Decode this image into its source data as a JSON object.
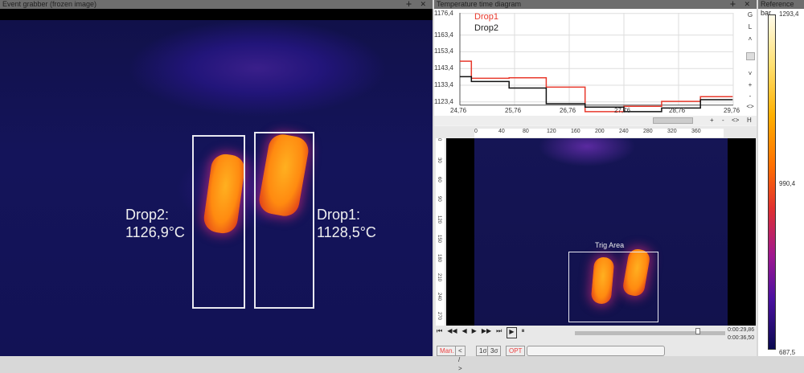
{
  "event_grabber": {
    "title": "Event grabber (frozen image)",
    "controls": "ⵜ ✕",
    "drop2_label": "Drop2:",
    "drop2_value": "1126,9°C",
    "drop1_label": "Drop1:",
    "drop1_value": "1128,5°C"
  },
  "temperature_diagram": {
    "title": "Temperature time diagram",
    "controls": "ⵜ ✕",
    "side_buttons": [
      "G",
      "L",
      "˄",
      "˅",
      "+",
      "-",
      "<>"
    ],
    "bottom_buttons": [
      "+",
      "-",
      "<>",
      "H"
    ],
    "colors": {
      "drop1": "#e8392c",
      "drop2": "#111111"
    },
    "chart_data": {
      "type": "line",
      "step": true,
      "x_ticks": [
        "24,76",
        "25,76",
        "26,76",
        "27,76",
        "28,76",
        "29,76"
      ],
      "y_ticks": [
        "1176,4",
        "1163,4",
        "1153,4",
        "1143,4",
        "1133,4",
        "1123,4"
      ],
      "xlim": [
        24.76,
        29.76
      ],
      "ylim": [
        1117,
        1176.4
      ],
      "grid": true,
      "legend": "top-left",
      "series": [
        {
          "name": "Drop1",
          "x": [
            24.76,
            24.97,
            25.66,
            26.34,
            27.05,
            27.76,
            28.45,
            29.16,
            29.75
          ],
          "y": [
            1147.8,
            1137.5,
            1137.8,
            1132.2,
            1117.5,
            1120.7,
            1123.7,
            1126.5,
            1126.5
          ]
        },
        {
          "name": "Drop2",
          "x": [
            24.76,
            24.97,
            25.66,
            26.34,
            27.05,
            27.76,
            28.45,
            29.16,
            29.75
          ],
          "y": [
            1138.5,
            1135.6,
            1131.7,
            1122.3,
            1120.2,
            1117.5,
            1119.7,
            1124.7,
            1124.7
          ]
        }
      ]
    }
  },
  "reference_bar": {
    "title": "Reference bar",
    "max": "1293,4",
    "mid": "990,4",
    "min": "687,5"
  },
  "viewer": {
    "h_ruler": [
      "0",
      "40",
      "80",
      "120",
      "160",
      "200",
      "240",
      "280",
      "320",
      "360"
    ],
    "v_ruler": [
      "0",
      "30",
      "60",
      "90",
      "120",
      "150",
      "180",
      "210",
      "240",
      "270"
    ],
    "trig_label": "Trig Area",
    "transport": [
      "⏮",
      "◀◀",
      "◀",
      "▶",
      "▶▶",
      "⏭",
      "▶",
      "⏸"
    ],
    "time_current": "0:00:29,86",
    "time_total": "0:00:36,50",
    "playback_position": 0.82,
    "buttons": [
      "Man.",
      "< / >",
      "1σ",
      "3σ",
      "OPT"
    ]
  }
}
